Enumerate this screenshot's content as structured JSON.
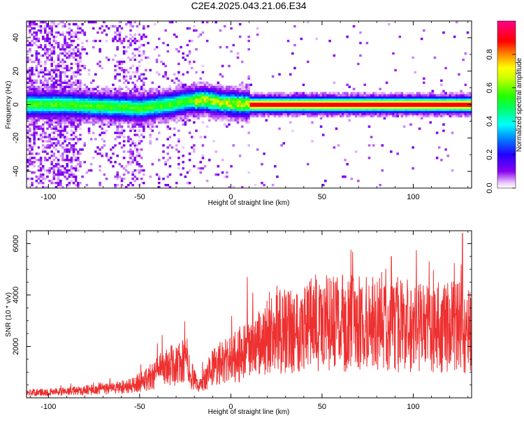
{
  "title": "C2E4.2025.043.21.06.E34",
  "colors": {
    "snr_line": "#ee3030",
    "trace_core": "#ff2020",
    "frame": "#000000"
  },
  "colorbar": {
    "label": "Normalized spectral amplitude",
    "ticks": [
      "0.0",
      "0.2",
      "0.4",
      "0.6",
      "0.8"
    ],
    "tick_values": [
      0.0,
      0.2,
      0.4,
      0.6,
      0.8
    ],
    "range": [
      0,
      1
    ],
    "colormap": "rainbow (white-violet-blue-cyan-green-yellow-orange-red-magenta)"
  },
  "chart_data": [
    {
      "type": "heatmap",
      "xlabel": "Height of straight line (km)",
      "ylabel": "Frequency (Hz)",
      "xlim": [
        -112,
        132
      ],
      "ylim": [
        -50,
        50
      ],
      "xticks": [
        -100,
        -50,
        0,
        50,
        100
      ],
      "xtick_labels": [
        "-100",
        "-50",
        "0",
        "50",
        "100"
      ],
      "yticks": [
        -40,
        -20,
        0,
        20,
        40
      ],
      "ytick_labels": [
        "-40",
        "-20",
        "0",
        "20",
        "40"
      ],
      "description_values": {
        "peak_frequency_trace": [
          {
            "x": -110,
            "y": 0
          },
          {
            "x": -90,
            "y": 0
          },
          {
            "x": -70,
            "y": -1
          },
          {
            "x": -50,
            "y": -2
          },
          {
            "x": -35,
            "y": 0
          },
          {
            "x": -25,
            "y": 2
          },
          {
            "x": -15,
            "y": 3
          },
          {
            "x": -5,
            "y": 1
          },
          {
            "x": 10,
            "y": 0
          },
          {
            "x": 30,
            "y": 0
          },
          {
            "x": 60,
            "y": 0
          },
          {
            "x": 100,
            "y": 0
          },
          {
            "x": 132,
            "y": 0
          }
        ]
      }
    },
    {
      "type": "line",
      "xlabel": "Height of straight line (km)",
      "ylabel": "SNR (10 * v/v)",
      "xlim": [
        -112,
        132
      ],
      "ylim": [
        0,
        6500
      ],
      "xticks": [
        -100,
        -50,
        0,
        50,
        100
      ],
      "xtick_labels": [
        "-100",
        "-50",
        "0",
        "50",
        "100"
      ],
      "yticks": [
        2000,
        4000,
        6000
      ],
      "ytick_labels": [
        "2000",
        "4000",
        "6000"
      ],
      "series": [
        {
          "envelope_mean": [
            {
              "x": -112,
              "y": 200
            },
            {
              "x": -90,
              "y": 250
            },
            {
              "x": -70,
              "y": 350
            },
            {
              "x": -55,
              "y": 450
            },
            {
              "x": -45,
              "y": 800
            },
            {
              "x": -35,
              "y": 1200
            },
            {
              "x": -25,
              "y": 1400
            },
            {
              "x": -18,
              "y": 400
            },
            {
              "x": -10,
              "y": 1200
            },
            {
              "x": 0,
              "y": 1500
            },
            {
              "x": 10,
              "y": 1800
            },
            {
              "x": 20,
              "y": 2300
            },
            {
              "x": 30,
              "y": 2600
            },
            {
              "x": 45,
              "y": 2900
            },
            {
              "x": 60,
              "y": 2900
            },
            {
              "x": 75,
              "y": 2900
            },
            {
              "x": 90,
              "y": 2800
            },
            {
              "x": 105,
              "y": 2700
            },
            {
              "x": 115,
              "y": 2600
            },
            {
              "x": 125,
              "y": 2900
            },
            {
              "x": 132,
              "y": 2500
            }
          ],
          "peaks": [
            {
              "x": -24,
              "y": 2300
            },
            {
              "x": 9,
              "y": 4700
            },
            {
              "x": 27,
              "y": 4200
            },
            {
              "x": 47,
              "y": 4600
            },
            {
              "x": 88,
              "y": 5500
            },
            {
              "x": 127,
              "y": 6400
            }
          ]
        }
      ]
    }
  ]
}
